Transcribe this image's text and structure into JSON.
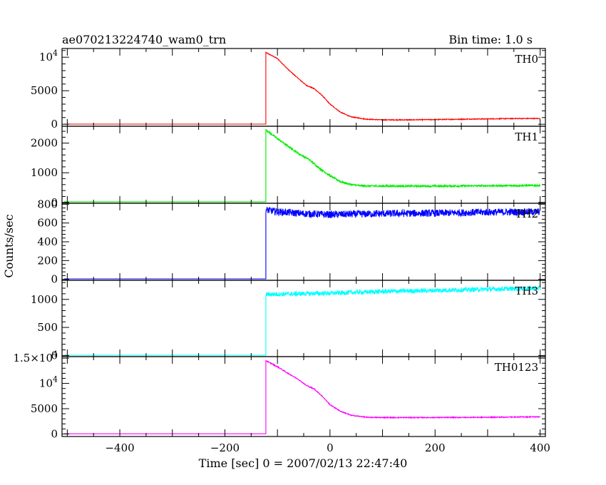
{
  "chart_data": {
    "type": "line",
    "title": "ae070213224740_wam0_trn",
    "bin_time_label": "Bin time: 1.0 s",
    "xlabel": "Time [sec] 0 = 2007/02/13 22:47:40",
    "ylabel": "Counts/sec",
    "xlim": [
      -510,
      410
    ],
    "x_ticks": [
      -400,
      -200,
      0,
      200,
      400
    ],
    "x_tick_labels": [
      "−400",
      "−200",
      "0",
      "200",
      "400"
    ],
    "trigger_time": -122,
    "grid": false,
    "panels": [
      {
        "name": "TH0",
        "color": "#ff0000",
        "ylim": [
          -300,
          11300
        ],
        "y_ticks": [
          0,
          5000,
          10000
        ],
        "y_tick_labels": [
          "0",
          "5000",
          "10^4"
        ],
        "baseline": 20,
        "profile": [
          [
            -122,
            10700
          ],
          [
            -100,
            9800
          ],
          [
            -80,
            8200
          ],
          [
            -60,
            6800
          ],
          [
            -45,
            5800
          ],
          [
            -30,
            5300
          ],
          [
            -15,
            4300
          ],
          [
            0,
            3000
          ],
          [
            20,
            1800
          ],
          [
            40,
            1100
          ],
          [
            70,
            750
          ],
          [
            100,
            650
          ],
          [
            150,
            650
          ],
          [
            200,
            700
          ],
          [
            250,
            750
          ],
          [
            300,
            800
          ],
          [
            350,
            850
          ],
          [
            400,
            850
          ]
        ],
        "noise": 60
      },
      {
        "name": "TH1",
        "color": "#00ee00",
        "ylim": [
          -30,
          2570
        ],
        "y_ticks": [
          0,
          1000,
          2000
        ],
        "y_tick_labels": [
          "0",
          "1000",
          "2000"
        ],
        "baseline": 20,
        "profile": [
          [
            -122,
            2450
          ],
          [
            -100,
            2150
          ],
          [
            -80,
            1900
          ],
          [
            -60,
            1650
          ],
          [
            -40,
            1450
          ],
          [
            -20,
            1150
          ],
          [
            0,
            900
          ],
          [
            20,
            700
          ],
          [
            40,
            600
          ],
          [
            60,
            560
          ],
          [
            100,
            550
          ],
          [
            200,
            550
          ],
          [
            300,
            560
          ],
          [
            400,
            570
          ]
        ],
        "noise": 30
      },
      {
        "name": "TH2",
        "color": "#0000ff",
        "ylim": [
          -10,
          810
        ],
        "y_ticks": [
          0,
          200,
          400,
          600,
          800
        ],
        "y_tick_labels": [
          "0",
          "200",
          "400",
          "600",
          "800"
        ],
        "baseline": 5,
        "profile": [
          [
            -122,
            740
          ],
          [
            -100,
            720
          ],
          [
            -50,
            700
          ],
          [
            0,
            690
          ],
          [
            100,
            700
          ],
          [
            200,
            705
          ],
          [
            300,
            715
          ],
          [
            400,
            720
          ]
        ],
        "noise": 38
      },
      {
        "name": "TH3",
        "color": "#00ffff",
        "ylim": [
          -20,
          1340
        ],
        "y_ticks": [
          0,
          500,
          1000
        ],
        "y_tick_labels": [
          "0",
          "500",
          "1000"
        ],
        "baseline": 5,
        "profile": [
          [
            -122,
            1090
          ],
          [
            0,
            1110
          ],
          [
            100,
            1140
          ],
          [
            200,
            1160
          ],
          [
            300,
            1180
          ],
          [
            400,
            1200
          ]
        ],
        "noise": 40
      },
      {
        "name": "TH0123",
        "color": "#ff00ff",
        "ylim": [
          -500,
          15300
        ],
        "y_ticks": [
          0,
          5000,
          10000,
          15000
        ],
        "y_tick_labels": [
          "0",
          "5000",
          "10^4",
          "1.5×10^4"
        ],
        "baseline": 30,
        "profile": [
          [
            -122,
            14500
          ],
          [
            -100,
            13300
          ],
          [
            -80,
            12000
          ],
          [
            -60,
            10800
          ],
          [
            -45,
            9600
          ],
          [
            -30,
            8900
          ],
          [
            -15,
            7500
          ],
          [
            0,
            5800
          ],
          [
            20,
            4500
          ],
          [
            40,
            3700
          ],
          [
            70,
            3300
          ],
          [
            100,
            3250
          ],
          [
            200,
            3250
          ],
          [
            300,
            3300
          ],
          [
            400,
            3400
          ]
        ],
        "noise": 90
      }
    ]
  }
}
